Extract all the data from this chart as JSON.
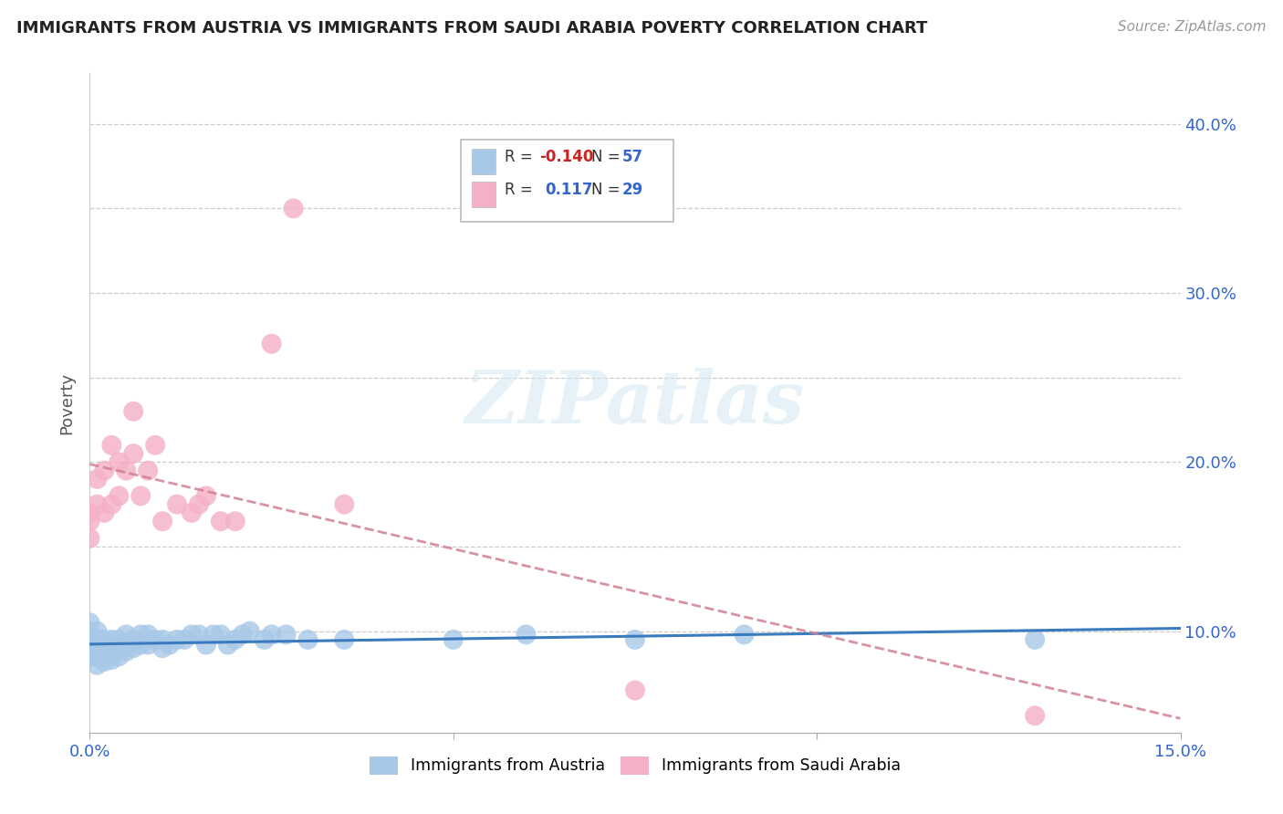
{
  "title": "IMMIGRANTS FROM AUSTRIA VS IMMIGRANTS FROM SAUDI ARABIA POVERTY CORRELATION CHART",
  "source": "Source: ZipAtlas.com",
  "ylabel": "Poverty",
  "xlim": [
    0.0,
    0.15
  ],
  "ylim": [
    0.04,
    0.43
  ],
  "ytick_vals": [
    0.1,
    0.15,
    0.2,
    0.25,
    0.3,
    0.35,
    0.4
  ],
  "ytick_labels": [
    "10.0%",
    "",
    "20.0%",
    "",
    "30.0%",
    "",
    "40.0%"
  ],
  "xtick_vals": [
    0.0,
    0.05,
    0.1,
    0.15
  ],
  "xtick_labels": [
    "0.0%",
    "",
    "",
    "15.0%"
  ],
  "r_austria": -0.14,
  "n_austria": 57,
  "r_saudi": 0.117,
  "n_saudi": 29,
  "color_austria": "#a8c8e8",
  "color_saudi": "#f4b0c4",
  "line_color_austria": "#3a7abf",
  "line_color_saudi": "#d45080",
  "line_color_saudi_dashed": "#d08090",
  "watermark": "ZIPatlas",
  "legend_austria": "Immigrants from Austria",
  "legend_saudi": "Immigrants from Saudi Arabia",
  "austria_x": [
    0.0,
    0.0,
    0.0,
    0.0,
    0.0,
    0.001,
    0.001,
    0.001,
    0.001,
    0.001,
    0.001,
    0.002,
    0.002,
    0.002,
    0.002,
    0.002,
    0.003,
    0.003,
    0.003,
    0.003,
    0.004,
    0.004,
    0.004,
    0.005,
    0.005,
    0.005,
    0.006,
    0.006,
    0.007,
    0.007,
    0.008,
    0.008,
    0.009,
    0.01,
    0.01,
    0.011,
    0.012,
    0.013,
    0.014,
    0.015,
    0.016,
    0.017,
    0.018,
    0.019,
    0.02,
    0.021,
    0.022,
    0.024,
    0.025,
    0.027,
    0.03,
    0.035,
    0.05,
    0.06,
    0.075,
    0.09,
    0.13
  ],
  "austria_y": [
    0.085,
    0.09,
    0.095,
    0.1,
    0.105,
    0.08,
    0.085,
    0.09,
    0.092,
    0.095,
    0.1,
    0.082,
    0.085,
    0.088,
    0.09,
    0.095,
    0.083,
    0.086,
    0.09,
    0.095,
    0.085,
    0.09,
    0.095,
    0.088,
    0.092,
    0.098,
    0.09,
    0.095,
    0.092,
    0.098,
    0.092,
    0.098,
    0.095,
    0.09,
    0.095,
    0.092,
    0.095,
    0.095,
    0.098,
    0.098,
    0.092,
    0.098,
    0.098,
    0.092,
    0.095,
    0.098,
    0.1,
    0.095,
    0.098,
    0.098,
    0.095,
    0.095,
    0.095,
    0.098,
    0.095,
    0.098,
    0.095
  ],
  "saudi_x": [
    0.0,
    0.0,
    0.0,
    0.001,
    0.001,
    0.002,
    0.002,
    0.003,
    0.003,
    0.004,
    0.004,
    0.005,
    0.006,
    0.006,
    0.007,
    0.008,
    0.009,
    0.01,
    0.012,
    0.014,
    0.015,
    0.016,
    0.018,
    0.02,
    0.025,
    0.028,
    0.035,
    0.075,
    0.13
  ],
  "saudi_y": [
    0.155,
    0.165,
    0.17,
    0.175,
    0.19,
    0.17,
    0.195,
    0.175,
    0.21,
    0.2,
    0.18,
    0.195,
    0.205,
    0.23,
    0.18,
    0.195,
    0.21,
    0.165,
    0.175,
    0.17,
    0.175,
    0.18,
    0.165,
    0.165,
    0.27,
    0.35,
    0.175,
    0.065,
    0.05
  ]
}
